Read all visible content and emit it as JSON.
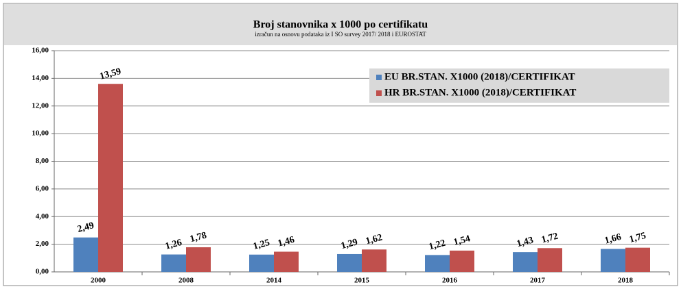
{
  "chart_data": {
    "type": "bar",
    "title": "Broj stanovnika x 1000 po certifikatu",
    "subtitle": "izračun na osnovu podataka iz I SO survey 2017/ 2018  i   EUROSTAT",
    "categories": [
      "2000",
      "2008",
      "2014",
      "2015",
      "2016",
      "2017",
      "2018"
    ],
    "series": [
      {
        "name": "EU BR.STAN. X1000 (2018)/CERTIFIKAT",
        "color": "#4f81bd",
        "values": [
          2.49,
          1.26,
          1.25,
          1.29,
          1.22,
          1.43,
          1.66
        ],
        "value_labels": [
          "2,49",
          "1,26",
          "1,25",
          "1,29",
          "1,22",
          "1,43",
          "1,66"
        ]
      },
      {
        "name": "HR BR.STAN. X1000 (2018)/CERTIFIKAT",
        "color": "#c0504d",
        "values": [
          13.59,
          1.78,
          1.46,
          1.62,
          1.54,
          1.72,
          1.75
        ],
        "value_labels": [
          "13,59",
          "1,78",
          "1,46",
          "1,62",
          "1,54",
          "1,72",
          "1,75"
        ]
      }
    ],
    "ylim": [
      0,
      16
    ],
    "yticks": [
      {
        "value": 0,
        "label": "0,00"
      },
      {
        "value": 2,
        "label": "2,00"
      },
      {
        "value": 4,
        "label": "4,00"
      },
      {
        "value": 6,
        "label": "6,00"
      },
      {
        "value": 8,
        "label": "8,00"
      },
      {
        "value": 10,
        "label": "10,00"
      },
      {
        "value": 12,
        "label": "12,00"
      },
      {
        "value": 14,
        "label": "14,00"
      },
      {
        "value": 16,
        "label": "16,00"
      }
    ],
    "grid": true,
    "legend": "upper right"
  }
}
